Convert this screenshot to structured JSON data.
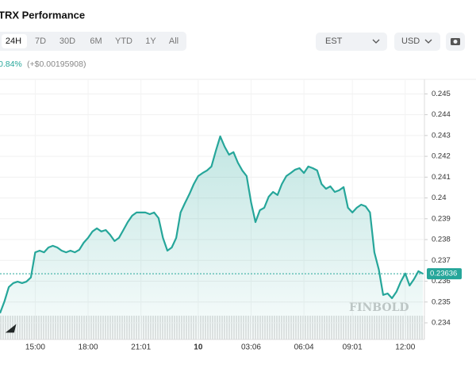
{
  "controls": {
    "timeframes": [
      "24H",
      "7D",
      "30D",
      "6M",
      "YTD",
      "1Y",
      "All"
    ],
    "selected": 0,
    "timezone": "EST",
    "currency": "USD",
    "change_percent": "0.84%",
    "change_amount": "(+$0.00195908)"
  },
  "chart_data": {
    "type": "area",
    "title": "TRX Performance",
    "color": "#26a69a",
    "grid": true,
    "watermark": "FINBOLD",
    "categories": [
      null,
      null,
      null,
      null,
      null,
      null,
      null,
      null,
      "15:00",
      null,
      null,
      null,
      null,
      null,
      null,
      null,
      null,
      null,
      null,
      null,
      "18:00",
      null,
      null,
      null,
      null,
      null,
      null,
      null,
      null,
      null,
      null,
      null,
      "21:01",
      null,
      null,
      null,
      null,
      null,
      null,
      null,
      null,
      null,
      null,
      null,
      null,
      "10",
      null,
      null,
      null,
      null,
      null,
      null,
      null,
      null,
      null,
      null,
      null,
      "03:06",
      null,
      null,
      null,
      null,
      null,
      null,
      null,
      null,
      null,
      null,
      null,
      "06:04",
      null,
      null,
      null,
      null,
      null,
      null,
      null,
      null,
      null,
      null,
      "09:01",
      null,
      null,
      null,
      null,
      null,
      null,
      null,
      null,
      null,
      null,
      null,
      "12:00",
      null,
      null,
      null,
      null
    ],
    "values": [
      0.23446,
      0.23503,
      0.23572,
      0.23591,
      0.23598,
      0.23591,
      0.23598,
      0.23618,
      0.23739,
      0.23747,
      0.23739,
      0.23762,
      0.2377,
      0.23762,
      0.23747,
      0.23739,
      0.23747,
      0.23739,
      0.23751,
      0.23785,
      0.23808,
      0.23839,
      0.23854,
      0.23839,
      0.23846,
      0.23823,
      0.23793,
      0.23808,
      0.23846,
      0.23884,
      0.23915,
      0.2393,
      0.2393,
      0.2393,
      0.23922,
      0.2393,
      0.23903,
      0.23808,
      0.23747,
      0.23762,
      0.23808,
      0.2393,
      0.23976,
      0.24018,
      0.24067,
      0.24105,
      0.2412,
      0.24132,
      0.24151,
      0.24227,
      0.24296,
      0.24246,
      0.24208,
      0.2422,
      0.2417,
      0.24132,
      0.24105,
      0.23979,
      0.23884,
      0.23941,
      0.23953,
      0.24006,
      0.24029,
      0.24014,
      0.24067,
      0.24105,
      0.2412,
      0.24136,
      0.24143,
      0.2412,
      0.24151,
      0.24143,
      0.24132,
      0.24067,
      0.24044,
      0.24056,
      0.24029,
      0.24037,
      0.24052,
      0.23953,
      0.2393,
      0.23953,
      0.23968,
      0.2396,
      0.2393,
      0.23739,
      0.23656,
      0.23534,
      0.23541,
      0.23518,
      0.23549,
      0.23598,
      0.23637,
      0.23579,
      0.2361,
      0.23648,
      0.23636
    ],
    "last_price": 0.23636,
    "ylim": [
      0.2332,
      0.2457
    ],
    "yticks": [
      0.234,
      0.235,
      0.236,
      0.237,
      0.238,
      0.239,
      0.24,
      0.241,
      0.242,
      0.243,
      0.244,
      0.245
    ]
  }
}
